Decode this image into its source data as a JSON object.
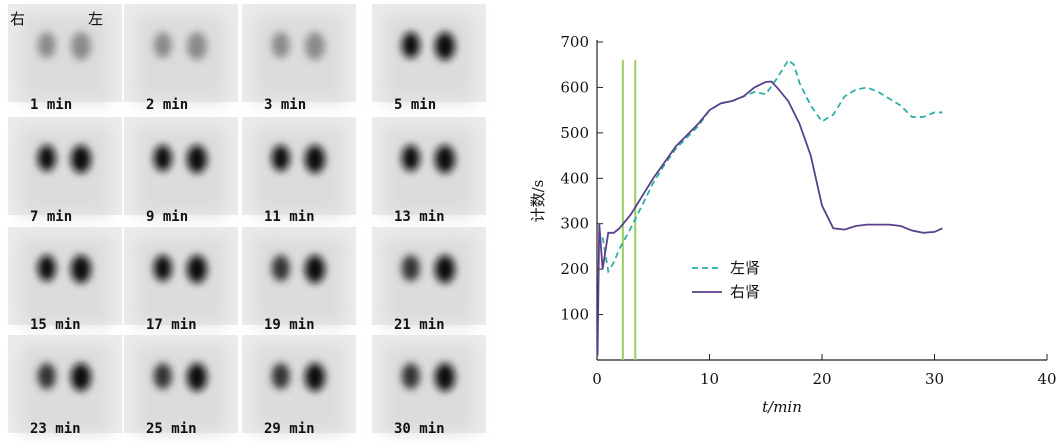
{
  "image_panel": {
    "corner_labels": [
      "右",
      "左"
    ],
    "frames": [
      "1 min",
      "2 min",
      "3 min",
      "5 min",
      "7 min",
      "9 min",
      "11 min",
      "13 min",
      "15 min",
      "17 min",
      "19 min",
      "21 min",
      "23 min",
      "25 min",
      "29 min",
      "30 min"
    ]
  },
  "chart_data": {
    "type": "line",
    "x_label": "t/min",
    "y_label": "计数/s",
    "xlim": [
      0,
      40
    ],
    "xticks": [
      0,
      10,
      20,
      30,
      40
    ],
    "ylim": [
      0,
      700
    ],
    "yticks": [
      100,
      200,
      300,
      400,
      500,
      600,
      700
    ],
    "legend": "center",
    "vlines": {
      "color": "#9acd62",
      "x": [
        2.3,
        3.4
      ],
      "top": 660
    },
    "series": [
      {
        "name": "左肾",
        "color": "#2ab0a8",
        "dash": true,
        "x": [
          0.5,
          1.0,
          1.5,
          2,
          3,
          4,
          5,
          6,
          7,
          8,
          9,
          10,
          11,
          12,
          13,
          14,
          15,
          16,
          17,
          17.5,
          18,
          19,
          20,
          21,
          22,
          23,
          24,
          25,
          26,
          27,
          28,
          29,
          30,
          30.7
        ],
        "values": [
          270,
          195,
          215,
          245,
          290,
          340,
          390,
          430,
          465,
          490,
          515,
          550,
          565,
          570,
          580,
          590,
          585,
          620,
          660,
          650,
          610,
          560,
          525,
          540,
          580,
          595,
          600,
          590,
          575,
          560,
          535,
          535,
          545,
          545
        ]
      },
      {
        "name": "右肾",
        "color": "#5a3f8a",
        "dash": false,
        "x": [
          0.05,
          0.2,
          0.5,
          1.0,
          1.5,
          2,
          3,
          4,
          5,
          6,
          7,
          8,
          9,
          10,
          11,
          12,
          13,
          14,
          15,
          15.5,
          16,
          17,
          18,
          19,
          20,
          21,
          22,
          23,
          24,
          25,
          26,
          27,
          28,
          29,
          30,
          30.7
        ],
        "values": [
          10,
          300,
          200,
          280,
          280,
          290,
          320,
          360,
          400,
          435,
          470,
          495,
          520,
          550,
          565,
          570,
          580,
          600,
          612,
          613,
          600,
          570,
          520,
          450,
          340,
          290,
          287,
          295,
          298,
          298,
          298,
          295,
          285,
          280,
          282,
          290
        ]
      }
    ]
  }
}
